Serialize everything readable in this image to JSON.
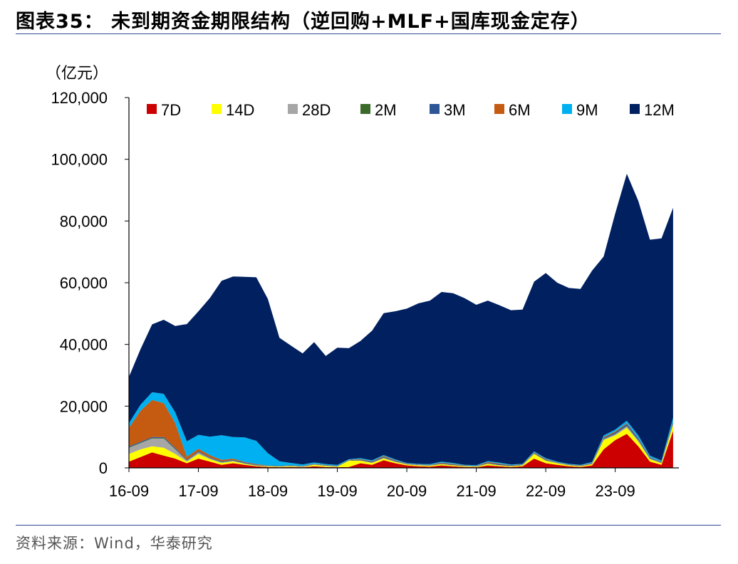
{
  "title": "图表35： 未到期资金期限结构（逆回购+MLF+国库现金定存）",
  "source": "资料来源：Wind，华泰研究",
  "chart_data": {
    "type": "area",
    "stacked": true,
    "unit_label": "（亿元）",
    "ylim": [
      0,
      120000
    ],
    "yticks": [
      "0",
      "20,000",
      "40,000",
      "60,000",
      "80,000",
      "100,000",
      "120,000"
    ],
    "ytick_values": [
      0,
      20000,
      40000,
      60000,
      80000,
      100000,
      120000
    ],
    "x_labels": [
      "16-09",
      "17-09",
      "18-09",
      "19-09",
      "20-09",
      "21-09",
      "22-09",
      "23-09"
    ],
    "x_range": [
      "2016-09",
      "2024-05"
    ],
    "legend_position": "top",
    "x_months": [
      0,
      2,
      4,
      6,
      8,
      10,
      12,
      14,
      16,
      18,
      20,
      22,
      24,
      26,
      28,
      30,
      32,
      34,
      36,
      38,
      40,
      42,
      44,
      46,
      48,
      50,
      52,
      54,
      56,
      58,
      60,
      62,
      64,
      66,
      68,
      70,
      72,
      74,
      76,
      78,
      80,
      82,
      84,
      86,
      88,
      90,
      92,
      94
    ],
    "series": [
      {
        "name": "7D",
        "color": "#cc0000",
        "values": [
          2000,
          3500,
          5000,
          4000,
          3000,
          1500,
          3000,
          2000,
          1000,
          1500,
          1000,
          500,
          300,
          200,
          300,
          200,
          500,
          300,
          200,
          300,
          1500,
          1000,
          2500,
          1500,
          800,
          500,
          400,
          800,
          500,
          300,
          200,
          800,
          500,
          300,
          500,
          3000,
          1500,
          1000,
          500,
          300,
          800,
          6000,
          9000,
          11000,
          7000,
          2000,
          1000,
          12000
        ]
      },
      {
        "name": "14D",
        "color": "#ffff00",
        "values": [
          2500,
          2500,
          2000,
          2500,
          1500,
          500,
          1500,
          800,
          600,
          600,
          300,
          200,
          150,
          150,
          200,
          100,
          500,
          300,
          150,
          2000,
          800,
          600,
          600,
          400,
          300,
          300,
          300,
          400,
          300,
          200,
          150,
          500,
          300,
          200,
          300,
          1500,
          800,
          500,
          300,
          200,
          400,
          3000,
          1500,
          2000,
          1500,
          800,
          500,
          2000
        ]
      },
      {
        "name": "28D",
        "color": "#a6a6a6",
        "values": [
          2000,
          2000,
          2500,
          3000,
          1500,
          300,
          500,
          300,
          200,
          200,
          100,
          100,
          50,
          50,
          50,
          50,
          100,
          100,
          50,
          50,
          100,
          100,
          100,
          100,
          50,
          50,
          50,
          50,
          50,
          50,
          50,
          50,
          50,
          50,
          50,
          100,
          100,
          50,
          50,
          50,
          50,
          300,
          400,
          500,
          400,
          200,
          100,
          300
        ]
      },
      {
        "name": "2M",
        "color": "#3a6b2a",
        "values": [
          200,
          200,
          200,
          200,
          200,
          100,
          100,
          100,
          100,
          100,
          100,
          50,
          50,
          50,
          50,
          50,
          50,
          50,
          50,
          50,
          50,
          50,
          50,
          50,
          50,
          50,
          50,
          50,
          50,
          50,
          50,
          50,
          50,
          50,
          50,
          50,
          50,
          50,
          50,
          50,
          50,
          100,
          100,
          100,
          100,
          50,
          50,
          100
        ]
      },
      {
        "name": "3M",
        "color": "#2e5596",
        "values": [
          300,
          300,
          300,
          300,
          300,
          200,
          300,
          200,
          200,
          200,
          200,
          200,
          100,
          100,
          100,
          100,
          100,
          100,
          100,
          100,
          200,
          200,
          300,
          200,
          100,
          100,
          100,
          200,
          200,
          100,
          100,
          200,
          300,
          200,
          100,
          200,
          200,
          100,
          100,
          100,
          200,
          300,
          500,
          600,
          500,
          300,
          200,
          500
        ]
      },
      {
        "name": "6M",
        "color": "#c55a11",
        "values": [
          6000,
          10000,
          12000,
          11000,
          8000,
          1000,
          800,
          700,
          500,
          400,
          200,
          200,
          100,
          100,
          100,
          100,
          100,
          100,
          100,
          100,
          200,
          200,
          300,
          200,
          100,
          100,
          100,
          200,
          200,
          100,
          100,
          300,
          200,
          100,
          100,
          200,
          200,
          100,
          100,
          100,
          100,
          300,
          300,
          300,
          200,
          100,
          100,
          200
        ]
      },
      {
        "name": "9M",
        "color": "#00b0f0",
        "values": [
          1500,
          2000,
          2500,
          3000,
          3500,
          5000,
          4500,
          6000,
          8000,
          7000,
          8000,
          7500,
          4000,
          1500,
          800,
          500,
          400,
          300,
          300,
          200,
          300,
          300,
          300,
          300,
          200,
          200,
          200,
          300,
          300,
          200,
          200,
          300,
          300,
          200,
          200,
          300,
          300,
          200,
          200,
          200,
          300,
          500,
          600,
          800,
          800,
          500,
          400,
          1200
        ]
      },
      {
        "name": "12M",
        "color": "#002060",
        "values": [
          15000,
          18000,
          22000,
          24000,
          28000,
          38000,
          40000,
          45000,
          50000,
          52000,
          52000,
          53000,
          50000,
          40000,
          38000,
          36000,
          39000,
          35000,
          38000,
          36000,
          38000,
          42000,
          46000,
          48000,
          50000,
          52000,
          53000,
          55000,
          55000,
          54000,
          52000,
          52000,
          51000,
          50000,
          50000,
          55000,
          60000,
          58000,
          57000,
          57000,
          62000,
          58000,
          70000,
          80000,
          76000,
          70000,
          72000,
          68000
        ]
      }
    ]
  }
}
